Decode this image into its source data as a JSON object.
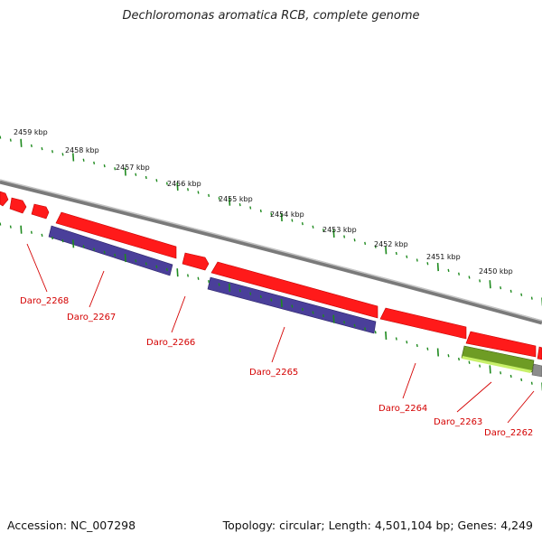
{
  "title": "Dechloromonas aromatica RCB, complete genome",
  "accession": "Accession: NC_007298",
  "summary": "Topology: circular; Length: 4,501,104 bp; Genes: 4,249",
  "colors": {
    "backbone": "#8c8c8c",
    "forward_gene": "#ff1a1a",
    "reverse_gene": "#4a3f9a",
    "rna_gene": "#8fd62b",
    "ticks": "#1e8a1e",
    "gene_label": "#d40000"
  },
  "scale_labels": [
    "2459 kbp",
    "2458 kbp",
    "2457 kbp",
    "2456 kbp",
    "2455 kbp",
    "2454 kbp",
    "2453 kbp",
    "2452 kbp",
    "2451 kbp",
    "2450 kbp"
  ],
  "gene_labels": [
    "Daro_2268",
    "Daro_2267",
    "Daro_2266",
    "Daro_2265",
    "Daro_2264",
    "Daro_2263",
    "Daro_2262"
  ]
}
